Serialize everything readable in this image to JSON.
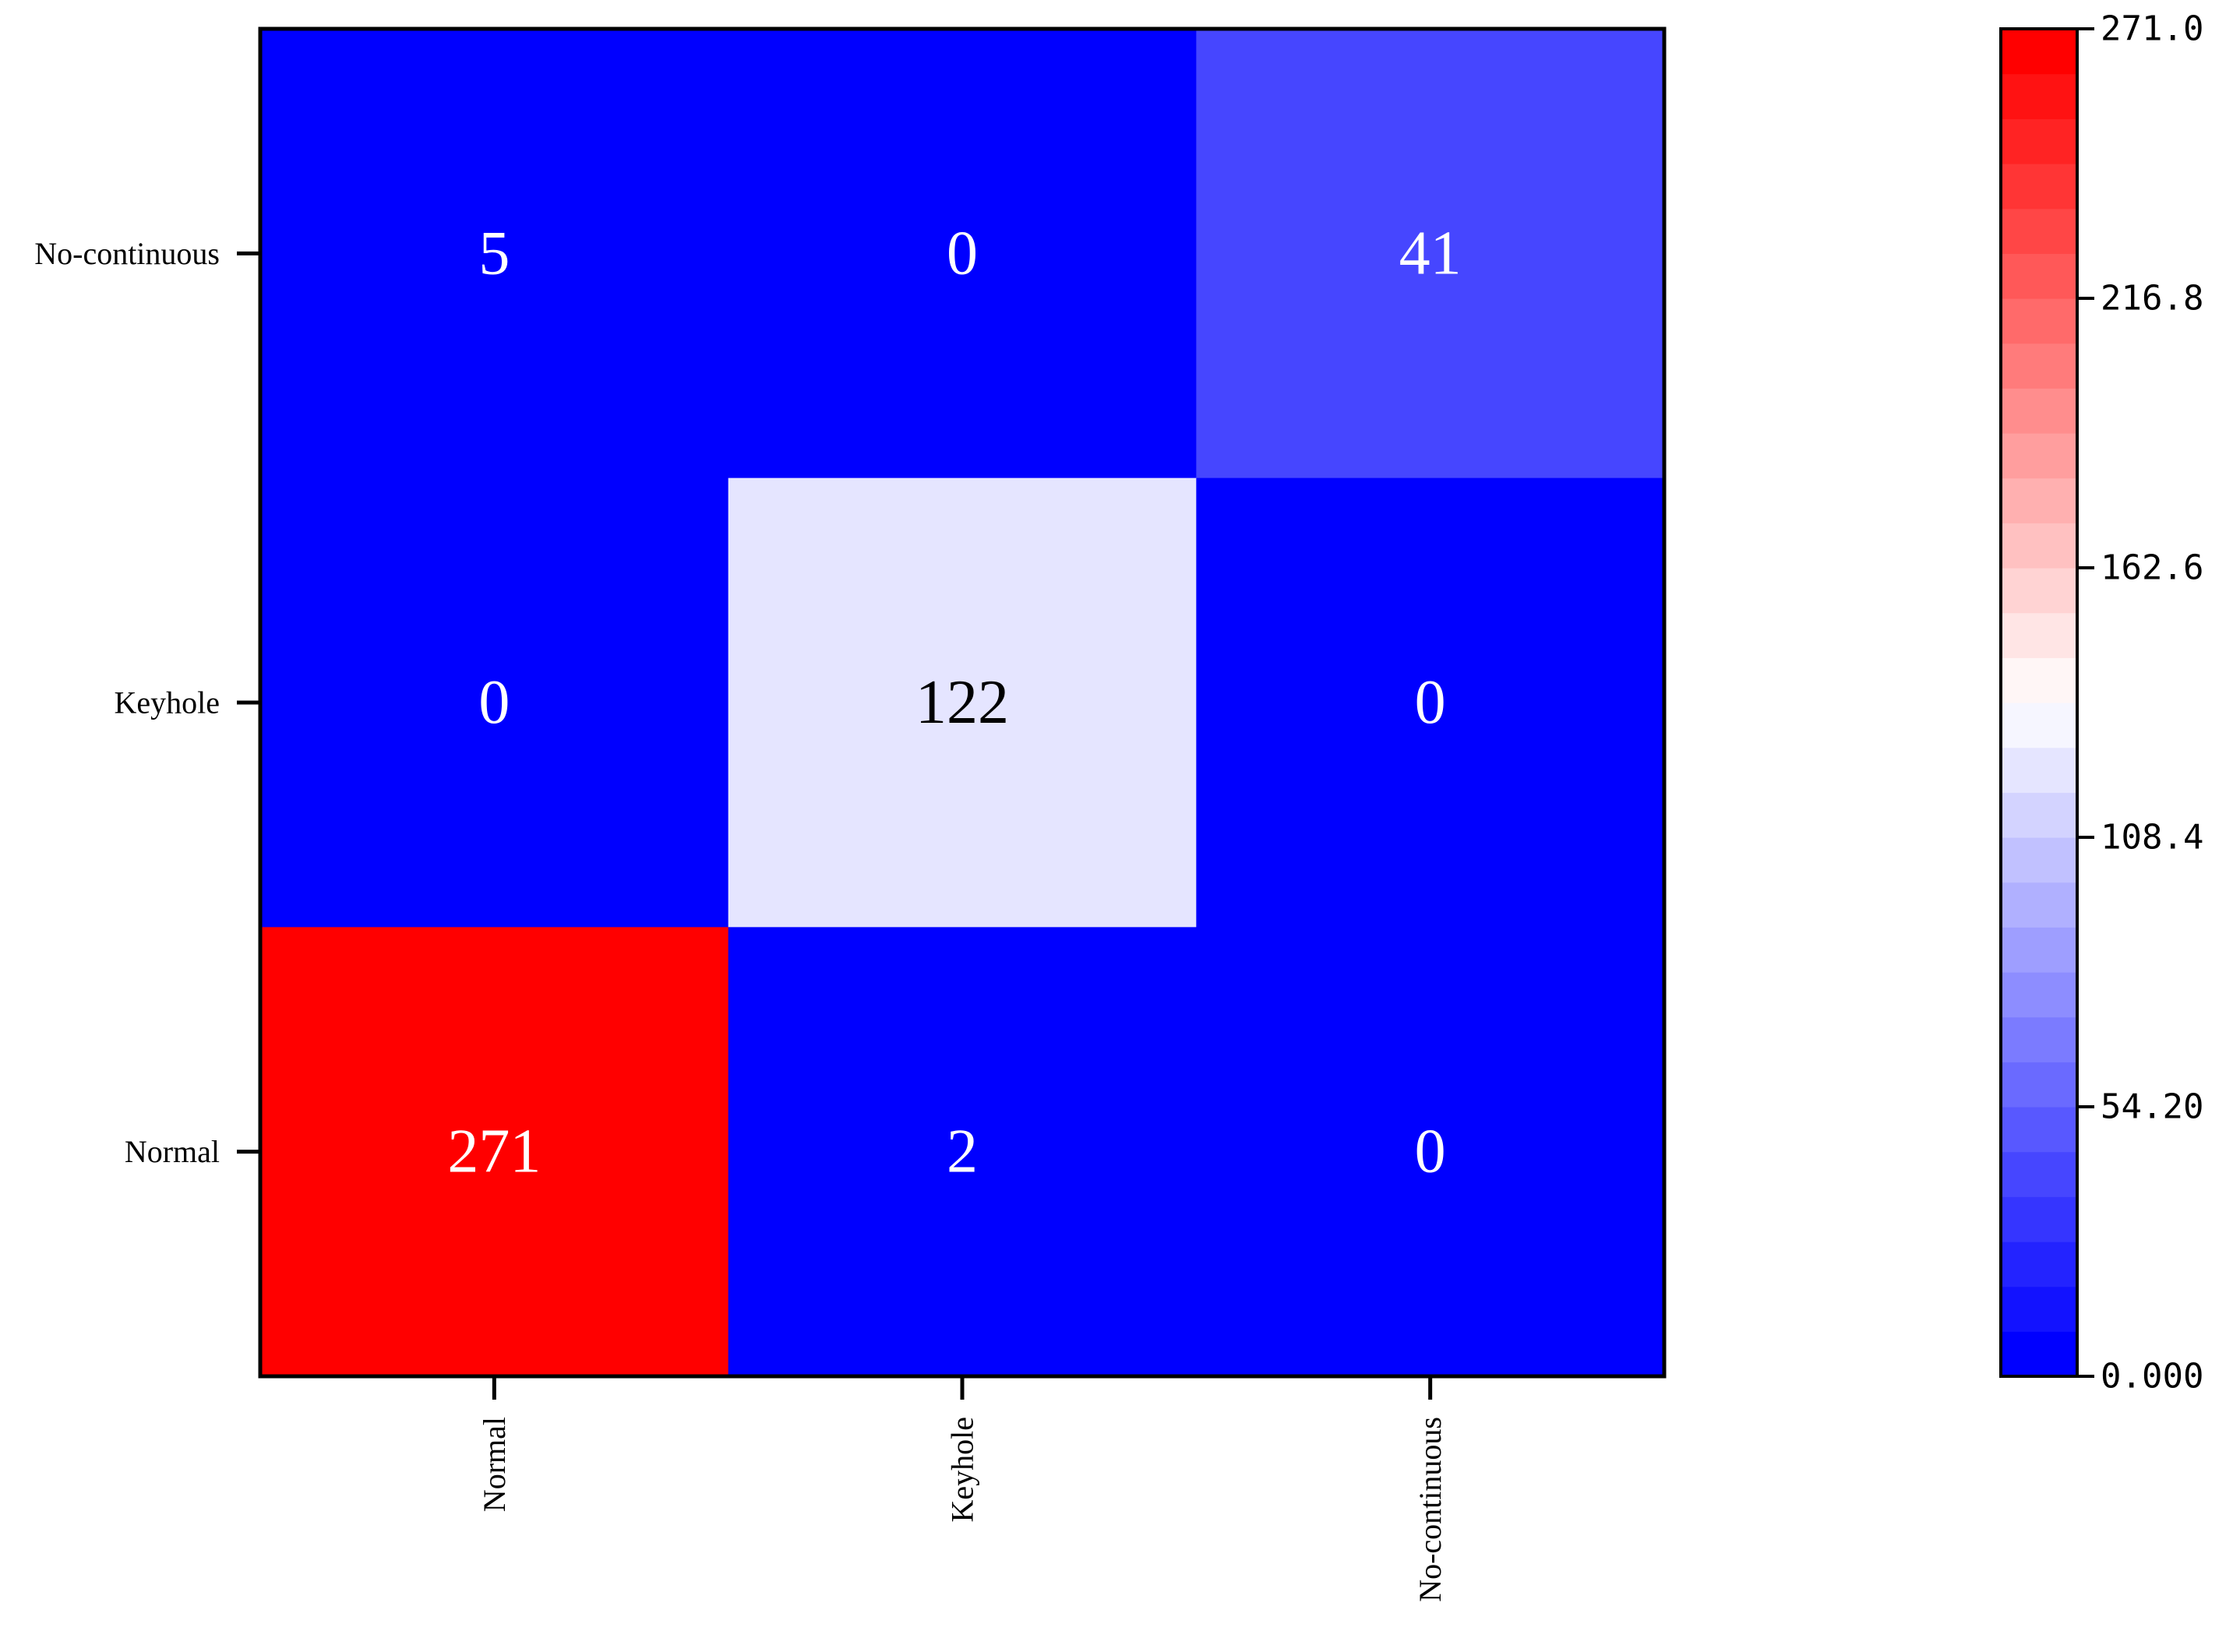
{
  "chart_data": {
    "type": "heatmap",
    "title": "",
    "xlabel": "",
    "ylabel": "",
    "x_categories": [
      "Normal",
      "Keyhole",
      "No-continuous"
    ],
    "y_categories": [
      "No-continuous",
      "Keyhole",
      "Normal"
    ],
    "values": [
      [
        5,
        0,
        41
      ],
      [
        0,
        122,
        0
      ],
      [
        271,
        2,
        0
      ]
    ],
    "value_labels": [
      [
        "5",
        "0",
        "41"
      ],
      [
        "0",
        "122",
        "0"
      ],
      [
        "271",
        "2",
        "0"
      ]
    ],
    "colorbar": {
      "range": [
        0,
        271
      ],
      "levels": 30,
      "tick_values": [
        0,
        54.2,
        108.4,
        162.6,
        216.8,
        271
      ],
      "tick_labels": [
        "0.000",
        "54.20",
        "108.4",
        "162.6",
        "216.8",
        "271.0"
      ]
    },
    "colormap": {
      "low": "#0000ff",
      "mid": "#ffffff",
      "high": "#ff0000"
    },
    "legend_position": "right",
    "grid": false
  }
}
